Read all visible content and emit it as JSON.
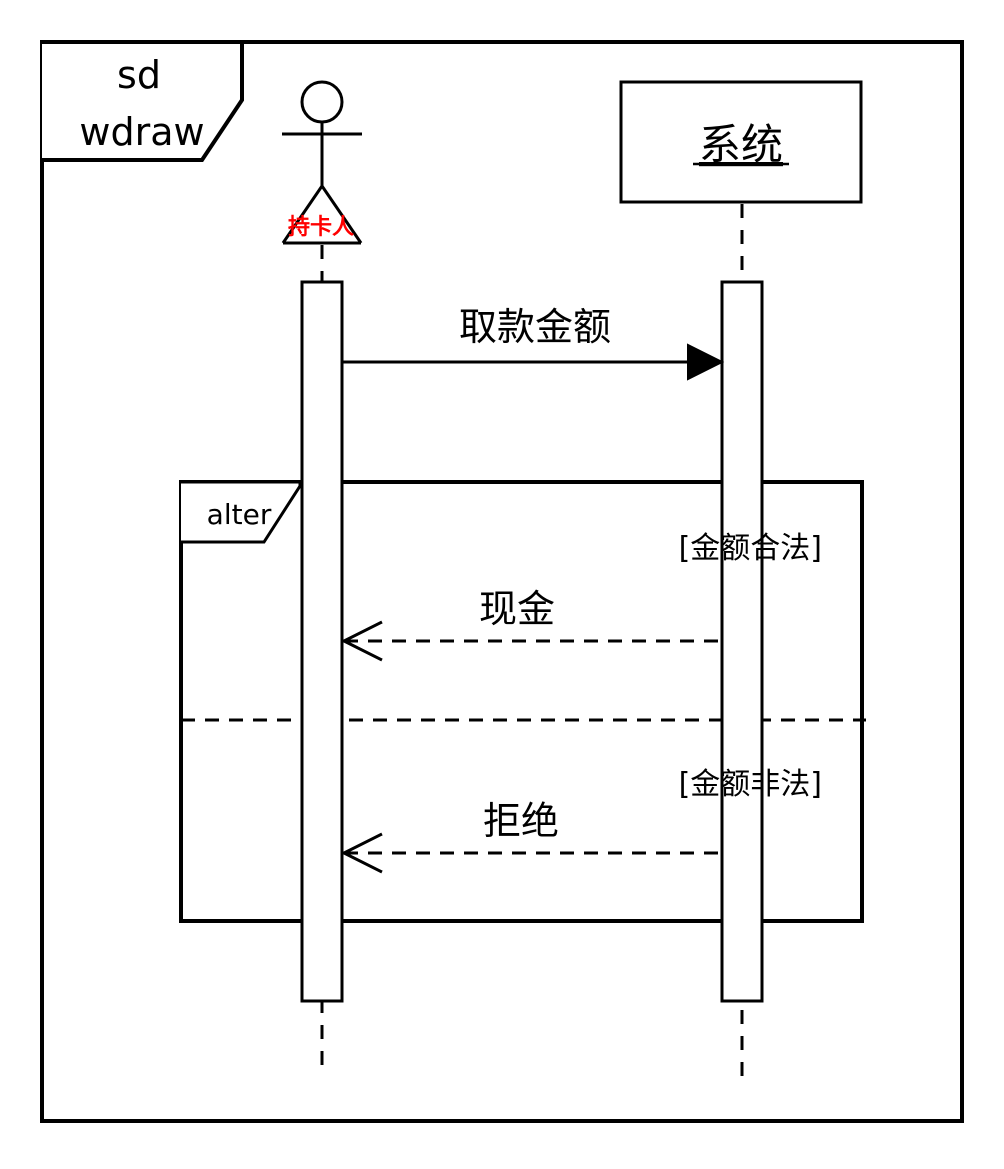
{
  "frame": {
    "label_line1": "sd",
    "label_line2": "wdraw"
  },
  "participants": {
    "actor": {
      "name": "持卡人",
      "label_color": "#ff0000"
    },
    "system": {
      "name": "系统"
    }
  },
  "messages": {
    "withdraw": {
      "label": "取款金额"
    },
    "cash": {
      "label": "现金"
    },
    "reject": {
      "label": "拒绝"
    }
  },
  "fragment": {
    "operator": "alter",
    "guard1": "[金额合法]",
    "guard2": "[金额非法]"
  }
}
